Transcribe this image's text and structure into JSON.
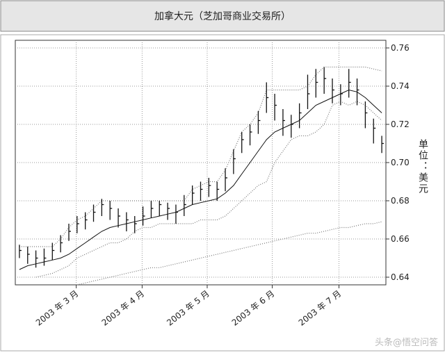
{
  "chart_data": {
    "type": "ohlc",
    "title": "加拿大元（芝加哥商业交易所）",
    "y_label": "单位：美元",
    "watermark": "头条@悟空问答",
    "color": "#111111",
    "xlim": [
      0,
      45
    ],
    "xticks": [
      {
        "value": 7.4,
        "label": "2003 年 3 月"
      },
      {
        "value": 15.4,
        "label": "2003 年 4 月"
      },
      {
        "value": 23.3,
        "label": "2003 年 5 月"
      },
      {
        "value": 31.2,
        "label": "2003 年 6 月"
      },
      {
        "value": 39.3,
        "label": "2003 年 7 月"
      }
    ],
    "ylim": [
      0.636,
      0.764
    ],
    "yticks": [
      0.64,
      0.66,
      0.68,
      {
        "value": 0.7,
        "label": "0.70"
      },
      0.72,
      0.74,
      0.76
    ],
    "grid": true,
    "high": [
      0.657,
      0.656,
      0.654,
      0.655,
      0.658,
      0.662,
      0.668,
      0.672,
      0.674,
      0.678,
      0.681,
      0.68,
      0.676,
      0.674,
      0.672,
      0.677,
      0.68,
      0.68,
      0.679,
      0.678,
      0.683,
      0.688,
      0.69,
      0.692,
      0.69,
      0.697,
      0.707,
      0.716,
      0.72,
      0.727,
      0.742,
      0.736,
      0.728,
      0.725,
      0.731,
      0.746,
      0.749,
      0.75,
      0.744,
      0.741,
      0.749,
      0.744,
      0.732,
      0.723,
      0.714
    ],
    "low": [
      0.65,
      0.647,
      0.645,
      0.646,
      0.649,
      0.653,
      0.659,
      0.663,
      0.665,
      0.669,
      0.672,
      0.67,
      0.666,
      0.664,
      0.663,
      0.667,
      0.671,
      0.672,
      0.67,
      0.668,
      0.672,
      0.678,
      0.68,
      0.682,
      0.68,
      0.685,
      0.694,
      0.705,
      0.709,
      0.715,
      0.726,
      0.722,
      0.714,
      0.713,
      0.718,
      0.728,
      0.734,
      0.736,
      0.731,
      0.73,
      0.734,
      0.73,
      0.718,
      0.71,
      0.705
    ],
    "close": [
      0.654,
      0.652,
      0.65,
      0.65,
      0.654,
      0.658,
      0.664,
      0.668,
      0.67,
      0.674,
      0.678,
      0.676,
      0.672,
      0.67,
      0.668,
      0.672,
      0.676,
      0.678,
      0.676,
      0.674,
      0.678,
      0.684,
      0.686,
      0.688,
      0.686,
      0.692,
      0.702,
      0.712,
      0.716,
      0.722,
      0.734,
      0.73,
      0.722,
      0.72,
      0.726,
      0.736,
      0.742,
      0.744,
      0.738,
      0.736,
      0.742,
      0.738,
      0.726,
      0.718,
      0.71
    ],
    "lines": [
      {
        "color": "#111111",
        "style": "solid",
        "values": [
          0.644,
          0.646,
          0.647,
          0.648,
          0.649,
          0.65,
          0.652,
          0.655,
          0.658,
          0.661,
          0.664,
          0.666,
          0.667,
          0.668,
          0.669,
          0.67,
          0.671,
          0.672,
          0.673,
          0.674,
          0.676,
          0.678,
          0.679,
          0.68,
          0.681,
          0.684,
          0.688,
          0.694,
          0.7,
          0.706,
          0.712,
          0.716,
          0.718,
          0.72,
          0.722,
          0.726,
          0.73,
          0.732,
          0.734,
          0.736,
          0.738,
          0.737,
          0.734,
          0.73,
          0.726
        ]
      },
      {
        "color": "#777777",
        "style": "dotted",
        "values": [
          0.656,
          0.656,
          0.656,
          0.656,
          0.656,
          0.66,
          0.666,
          0.67,
          0.672,
          0.676,
          0.68,
          0.68,
          0.68,
          0.68,
          0.68,
          0.68,
          0.68,
          0.68,
          0.68,
          0.68,
          0.68,
          0.686,
          0.688,
          0.69,
          0.69,
          0.696,
          0.706,
          0.716,
          0.72,
          0.726,
          0.738,
          0.738,
          0.738,
          0.738,
          0.738,
          0.74,
          0.746,
          0.75,
          0.75,
          0.75,
          0.75,
          0.75,
          0.75,
          0.749,
          0.748
        ]
      },
      {
        "color": "#777777",
        "style": "dotted",
        "values": [
          null,
          null,
          0.64,
          0.641,
          0.642,
          0.644,
          0.646,
          0.65,
          0.652,
          0.654,
          0.656,
          0.658,
          0.658,
          0.66,
          0.664,
          0.666,
          0.666,
          0.668,
          0.668,
          0.668,
          0.668,
          0.668,
          0.67,
          0.67,
          0.67,
          0.672,
          0.676,
          0.68,
          0.684,
          0.688,
          0.69,
          0.7,
          0.706,
          0.712,
          0.714,
          0.714,
          0.716,
          0.72,
          0.73,
          0.732,
          0.73,
          0.732,
          0.73,
          0.726,
          0.722
        ]
      },
      {
        "color": "#777777",
        "style": "dotted",
        "values": [
          null,
          null,
          null,
          null,
          null,
          null,
          null,
          0.636,
          0.637,
          0.638,
          0.639,
          0.64,
          0.641,
          0.642,
          0.643,
          0.644,
          0.645,
          0.645,
          0.646,
          0.647,
          0.648,
          0.649,
          0.65,
          0.651,
          0.652,
          0.653,
          0.654,
          0.655,
          0.656,
          0.657,
          0.658,
          0.659,
          0.66,
          0.661,
          0.662,
          0.663,
          0.663,
          0.664,
          0.665,
          0.666,
          0.666,
          0.667,
          0.668,
          0.668,
          0.669
        ]
      }
    ]
  }
}
